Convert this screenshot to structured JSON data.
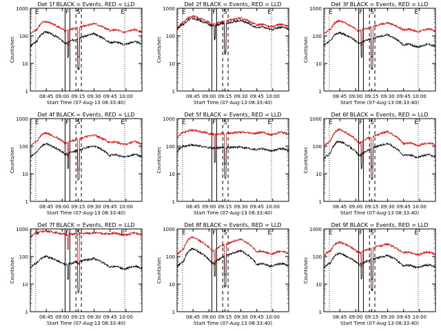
{
  "layout": {
    "rows": 3,
    "cols": 3
  },
  "colors": {
    "events": "#000000",
    "lld": "#dd0000",
    "frame": "#000000",
    "background": "#ffffff"
  },
  "chart_data": [
    {
      "type": "line",
      "title": "Det 1f BLACK = Events, RED = LLD",
      "ylabel": "Counts/sec",
      "xlabel": "Start Time (07-Aug-13 08:33:40)",
      "xticks": [
        "08:45",
        "09:00",
        "09:15",
        "09:30",
        "09:45",
        "10:00"
      ],
      "yticks": [
        "1",
        "10",
        "100",
        "1000"
      ],
      "ylim": [
        1,
        1000
      ],
      "yscale": "log",
      "markers": [
        "E",
        "F",
        "S",
        "E"
      ],
      "series": [
        {
          "name": "BLACK = Events",
          "color": "#000000",
          "base": 58,
          "peak": 140,
          "level2": 55
        },
        {
          "name": "RED = LLD",
          "color": "#dd0000",
          "base": 160,
          "peak": 330,
          "level2": 150
        }
      ]
    },
    {
      "type": "line",
      "title": "Det 2f BLACK = Events, RED = LLD",
      "ylabel": "Counts/sec",
      "xlabel": "Start Time (07-Aug-13 08:33:40)",
      "xticks": [
        "08:45",
        "09:00",
        "09:15",
        "09:30",
        "09:45",
        "10:00"
      ],
      "yticks": [
        "1",
        "10",
        "100",
        "1000"
      ],
      "ylim": [
        1,
        1000
      ],
      "yscale": "log",
      "markers": [
        "E",
        "F",
        "S",
        "E"
      ],
      "series": [
        {
          "name": "BLACK = Events",
          "color": "#000000",
          "base": 250,
          "peak": 430,
          "level2": 190
        },
        {
          "name": "RED = LLD",
          "color": "#dd0000",
          "base": 290,
          "peak": 520,
          "level2": 240
        }
      ]
    },
    {
      "type": "line",
      "title": "Det 3f BLACK = Events, RED = LLD",
      "ylabel": "Counts/sec",
      "xlabel": "Start Time (07-Aug-13 08:33:40)",
      "xticks": [
        "08:45",
        "09:00",
        "09:15",
        "09:30",
        "09:45",
        "10:00"
      ],
      "yticks": [
        "1",
        "10",
        "100",
        "1000"
      ],
      "ylim": [
        1,
        1000
      ],
      "yscale": "log",
      "markers": [
        "E",
        "F",
        "S",
        "E"
      ],
      "series": [
        {
          "name": "BLACK = Events",
          "color": "#000000",
          "base": 60,
          "peak": 130,
          "level2": 45
        },
        {
          "name": "RED = LLD",
          "color": "#dd0000",
          "base": 160,
          "peak": 350,
          "level2": 160
        }
      ]
    },
    {
      "type": "line",
      "title": "Det 4f BLACK = Events, RED = LLD",
      "ylabel": "Counts/sec",
      "xlabel": "Start Time (07-Aug-13 08:33:40)",
      "xticks": [
        "08:45",
        "09:00",
        "09:15",
        "09:30",
        "09:45",
        "10:00"
      ],
      "yticks": [
        "1",
        "10",
        "100",
        "1000"
      ],
      "ylim": [
        1,
        1000
      ],
      "yscale": "log",
      "markers": [
        "E",
        "F",
        "S",
        "E"
      ],
      "series": [
        {
          "name": "BLACK = Events",
          "color": "#000000",
          "base": 55,
          "peak": 120,
          "level2": 45
        },
        {
          "name": "RED = LLD",
          "color": "#dd0000",
          "base": 140,
          "peak": 300,
          "level2": 130
        }
      ]
    },
    {
      "type": "line",
      "title": "Det 5f BLACK = Events, RED = LLD",
      "ylabel": "Counts/sec",
      "xlabel": "Start Time (07-Aug-13 08:33:40)",
      "xticks": [
        "08:45",
        "09:00",
        "09:15",
        "09:30",
        "09:45",
        "10:00"
      ],
      "yticks": [
        "1",
        "10",
        "100",
        "1000"
      ],
      "ylim": [
        1,
        1000
      ],
      "yscale": "log",
      "markers": [
        "E",
        "F",
        "S",
        "E"
      ],
      "series": [
        {
          "name": "BLACK = Events",
          "color": "#000000",
          "base": 95,
          "peak": 110,
          "level2": 75
        },
        {
          "name": "RED = LLD",
          "color": "#dd0000",
          "base": 300,
          "peak": 380,
          "level2": 290
        }
      ]
    },
    {
      "type": "line",
      "title": "Det 6f BLACK = Events, RED = LLD",
      "ylabel": "Counts/sec",
      "xlabel": "Start Time (07-Aug-13 08:33:40)",
      "xticks": [
        "08:45",
        "09:00",
        "09:15",
        "09:30",
        "09:45",
        "10:00"
      ],
      "yticks": [
        "1",
        "10",
        "100",
        "1000"
      ],
      "ylim": [
        1,
        1000
      ],
      "yscale": "log",
      "markers": [
        "E",
        "F",
        "S",
        "E"
      ],
      "series": [
        {
          "name": "BLACK = Events",
          "color": "#000000",
          "base": 50,
          "peak": 150,
          "level2": 45
        },
        {
          "name": "RED = LLD",
          "color": "#dd0000",
          "base": 140,
          "peak": 400,
          "level2": 120
        }
      ]
    },
    {
      "type": "line",
      "title": "Det 7f BLACK = Events, RED = LLD",
      "ylabel": "Counts/sec",
      "xlabel": "Start Time (07-Aug-13 08:33:40)",
      "xticks": [
        "08:45",
        "09:00",
        "09:15",
        "09:30",
        "09:45",
        "10:00"
      ],
      "yticks": [
        "1",
        "10",
        "100",
        "1000"
      ],
      "ylim": [
        1,
        1000
      ],
      "yscale": "log",
      "markers": [
        "E",
        "F",
        "S",
        "E"
      ],
      "series": [
        {
          "name": "BLACK = Events",
          "color": "#000000",
          "base": 55,
          "peak": 100,
          "level2": 40
        },
        {
          "name": "RED = LLD",
          "color": "#dd0000",
          "base": 700,
          "peak": 850,
          "level2": 650
        }
      ]
    },
    {
      "type": "line",
      "title": "Det 8f BLACK = Events, RED = LLD",
      "ylabel": "Counts/sec",
      "xlabel": "Start Time (07-Aug-13 08:33:40)",
      "xticks": [
        "08:45",
        "09:00",
        "09:15",
        "09:30",
        "09:45",
        "10:00"
      ],
      "yticks": [
        "1",
        "10",
        "100",
        "1000"
      ],
      "ylim": [
        1,
        1000
      ],
      "yscale": "log",
      "markers": [
        "E",
        "F",
        "S",
        "E"
      ],
      "series": [
        {
          "name": "BLACK = Events",
          "color": "#000000",
          "base": 60,
          "peak": 190,
          "level2": 50
        },
        {
          "name": "RED = LLD",
          "color": "#dd0000",
          "base": 170,
          "peak": 500,
          "level2": 140
        }
      ]
    },
    {
      "type": "line",
      "title": "Det 9f BLACK = Events, RED = LLD",
      "ylabel": "Counts/sec",
      "xlabel": "Start Time (07-Aug-13 08:33:40)",
      "xticks": [
        "08:45",
        "09:00",
        "09:15",
        "09:30",
        "09:45",
        "10:00"
      ],
      "yticks": [
        "1",
        "10",
        "100",
        "1000"
      ],
      "ylim": [
        1,
        1000
      ],
      "yscale": "log",
      "markers": [
        "E",
        "F",
        "S",
        "E"
      ],
      "series": [
        {
          "name": "BLACK = Events",
          "color": "#000000",
          "base": 55,
          "peak": 130,
          "level2": 45
        },
        {
          "name": "RED = LLD",
          "color": "#dd0000",
          "base": 150,
          "peak": 330,
          "level2": 130
        }
      ]
    }
  ]
}
